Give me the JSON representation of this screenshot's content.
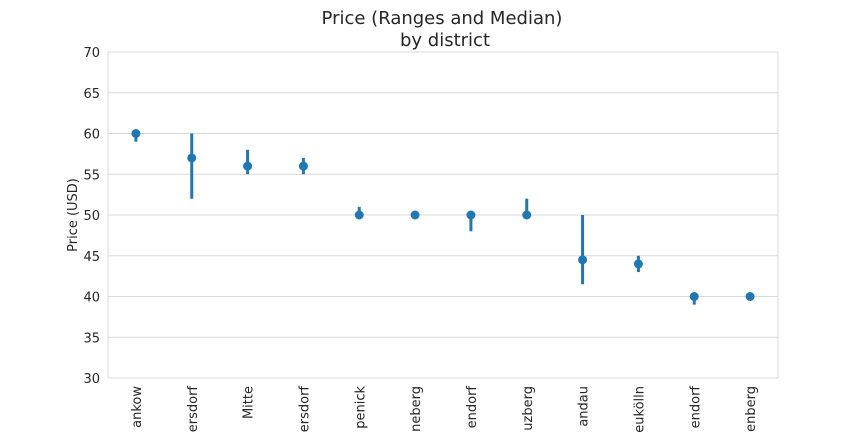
{
  "chart_data": {
    "type": "pointrange",
    "title": "Price (Ranges and Median)",
    "subtitle": "by district",
    "ylabel": "Price (USD)",
    "xlabel": "",
    "ylim": [
      30,
      70
    ],
    "yticks": [
      30,
      35,
      40,
      45,
      50,
      55,
      60,
      65,
      70
    ],
    "grid": true,
    "color": "#1f77b4",
    "categories": [
      "ankow",
      "ersdorf",
      "Mitte",
      "ersdorf",
      "penick",
      "neberg",
      "endorf",
      "uzberg",
      "andau",
      "eukölln",
      "endorf",
      "enberg"
    ],
    "median": [
      60,
      57,
      56,
      56,
      50,
      50,
      50,
      50,
      44.5,
      44,
      40,
      40
    ],
    "low": [
      59,
      52,
      55,
      55,
      50,
      50,
      48,
      50,
      41.5,
      43,
      39,
      40
    ],
    "high": [
      60,
      60,
      58,
      57,
      51,
      50,
      50,
      52,
      50,
      45,
      40,
      40
    ]
  }
}
